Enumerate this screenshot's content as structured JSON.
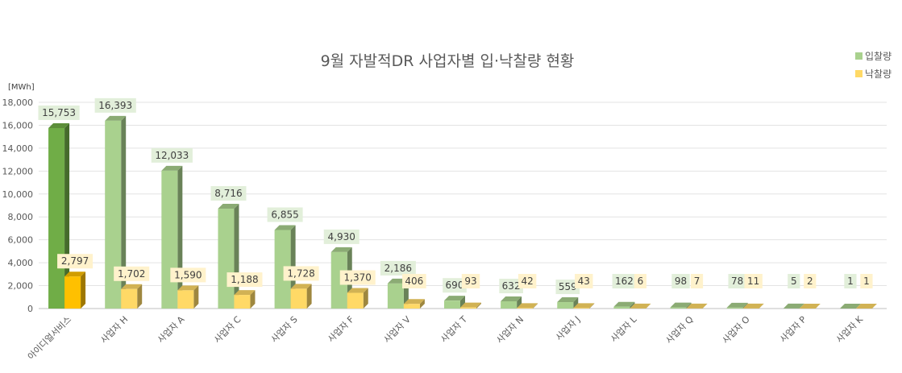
{
  "chart_data": {
    "type": "bar",
    "title": "9월 자발적DR 사업자별 입·낙찰량 현황",
    "unit_label": "[MWh]",
    "ylim": [
      0,
      18000
    ],
    "yticks": [
      "0",
      "2,000",
      "4,000",
      "6,000",
      "8,000",
      "10,000",
      "12,000",
      "14,000",
      "16,000",
      "18,000"
    ],
    "grid": true,
    "legend_position": "top-right",
    "categories": [
      "아이디얼서비스",
      "사업자 H",
      "사업자 A",
      "사업자 C",
      "사업자 S",
      "사업자 F",
      "사업자 V",
      "사업자 T",
      "사업자 N",
      "사업자 J",
      "사업자 L",
      "사업자 Q",
      "사업자 O",
      "사업자 P",
      "사업자 K"
    ],
    "series": [
      {
        "name": "입찰량",
        "color": "#a9d18e",
        "highlight_color": "#70ad47",
        "values": [
          15753,
          16393,
          12033,
          8716,
          6855,
          4930,
          2186,
          690,
          632,
          559,
          162,
          98,
          78,
          5,
          1
        ],
        "labels": [
          "15,753",
          "16,393",
          "12,033",
          "8,716",
          "6,855",
          "4,930",
          "2,186",
          "690",
          "632",
          "559",
          "162",
          "98",
          "78",
          "5",
          "1"
        ]
      },
      {
        "name": "낙찰량",
        "color": "#ffd966",
        "highlight_color": "#ffc000",
        "values": [
          2797,
          1702,
          1590,
          1188,
          1728,
          1370,
          406,
          93,
          42,
          43,
          6,
          7,
          11,
          2,
          1
        ],
        "labels": [
          "2,797",
          "1,702",
          "1,590",
          "1,188",
          "1,728",
          "1,370",
          "406",
          "93",
          "42",
          "43",
          "6",
          "7",
          "11",
          "2",
          "1"
        ]
      }
    ],
    "highlight_index": 0
  }
}
